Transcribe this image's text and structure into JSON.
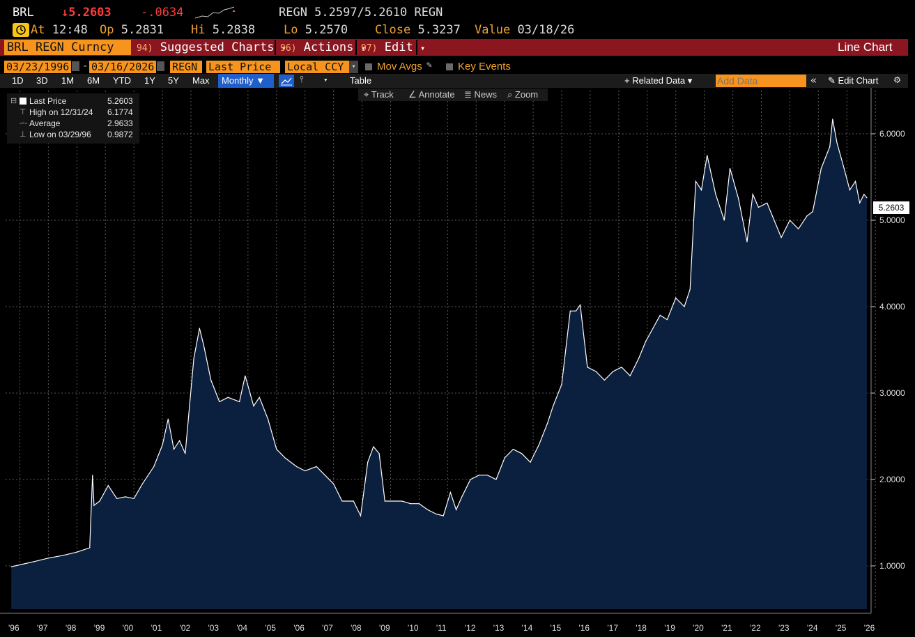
{
  "header": {
    "ticker": "BRL",
    "last_price": "↓5.2603",
    "change": "-.0634",
    "quote": "REGN 5.2597/5.2610 REGN",
    "at_label": "At",
    "at_value": "12:48",
    "op_label": "Op",
    "op_value": "5.2831",
    "hi_label": "Hi",
    "hi_value": "5.2838",
    "lo_label": "Lo",
    "lo_value": "5.2570",
    "close_label": "Close",
    "close_value": "5.3237",
    "value_label": "Value",
    "value_value": "03/18/26"
  },
  "menubar": {
    "security": "BRL REGN Curncy",
    "suggested_num": "94)",
    "suggested": "Suggested Charts",
    "actions_num": "96)",
    "actions": "Actions",
    "edit_num": "97)",
    "edit": "Edit",
    "chart_type": "Line Chart",
    "dropdown_glyph": "▾"
  },
  "params": {
    "start_date": "03/23/1996",
    "end_date": "03/16/2026",
    "dash": "-",
    "source": "REGN",
    "field": "Last Price",
    "currency": "Local CCY",
    "mov_avgs": "Mov Avgs",
    "key_events": "Key Events"
  },
  "periods": {
    "items": [
      "1D",
      "3D",
      "1M",
      "6M",
      "YTD",
      "1Y",
      "5Y",
      "Max"
    ],
    "frequency": "Monthly ▼",
    "table": "Table",
    "related": "+ Related Data ▾",
    "add_data_placeholder": "Add Data",
    "edit_chart": "Edit Chart"
  },
  "tools": {
    "track": "Track",
    "annotate": "Annotate",
    "news": "News",
    "zoom": "Zoom"
  },
  "legend": {
    "last_label": "Last Price",
    "last_value": "5.2603",
    "high_label": "High on 12/31/24",
    "high_value": "6.1774",
    "avg_label": "Average",
    "avg_value": "2.9633",
    "low_label": "Low on 03/29/96",
    "low_value": "0.9872"
  },
  "colors": {
    "area_fill": "#0b1f3f",
    "line": "#ffffff",
    "accent_orange": "#f7941d",
    "menubar_red": "#8b1620"
  },
  "chart_data": {
    "type": "area",
    "ylim": [
      0.5,
      6.5
    ],
    "y_ticks": [
      "1.0000",
      "2.0000",
      "3.0000",
      "4.0000",
      "5.0000",
      "6.0000"
    ],
    "y_tick_values": [
      1,
      2,
      3,
      4,
      5,
      6
    ],
    "x_ticks": [
      "'96",
      "'97",
      "'98",
      "'99",
      "'00",
      "'01",
      "'02",
      "'03",
      "'04",
      "'05",
      "'06",
      "'07",
      "'08",
      "'09",
      "'10",
      "'11",
      "'12",
      "'13",
      "'14",
      "'15",
      "'16",
      "'17",
      "'18",
      "'19",
      "'20",
      "'21",
      "'22",
      "'23",
      "'24",
      "'25",
      "'26"
    ],
    "last_value_label": "5.2603",
    "series": [
      {
        "x": [
          1996.2,
          1996.6,
          1997.0,
          1997.5,
          1998.0,
          1998.5,
          1998.95,
          1999.05,
          1999.1,
          1999.3,
          1999.6,
          1999.9,
          2000.2,
          2000.5,
          2000.8,
          2001.2,
          2001.5,
          2001.7,
          2001.9,
          2002.1,
          2002.3,
          2002.6,
          2002.8,
          2002.95,
          2003.2,
          2003.5,
          2003.8,
          2004.2,
          2004.4,
          2004.7,
          2004.9,
          2005.2,
          2005.5,
          2005.8,
          2006.2,
          2006.5,
          2006.9,
          2007.2,
          2007.5,
          2007.8,
          2008.2,
          2008.45,
          2008.7,
          2008.9,
          2009.1,
          2009.3,
          2009.6,
          2009.9,
          2010.2,
          2010.5,
          2010.8,
          2011.1,
          2011.35,
          2011.6,
          2011.8,
          2012.0,
          2012.3,
          2012.6,
          2012.9,
          2013.2,
          2013.5,
          2013.8,
          2014.1,
          2014.4,
          2014.7,
          2015.0,
          2015.2,
          2015.5,
          2015.8,
          2016.0,
          2016.15,
          2016.4,
          2016.7,
          2017.0,
          2017.3,
          2017.6,
          2017.9,
          2018.2,
          2018.45,
          2018.7,
          2018.95,
          2019.2,
          2019.5,
          2019.8,
          2020.0,
          2020.2,
          2020.4,
          2020.6,
          2020.9,
          2021.2,
          2021.4,
          2021.7,
          2022.0,
          2022.2,
          2022.4,
          2022.7,
          2022.95,
          2023.2,
          2023.5,
          2023.8,
          2024.1,
          2024.3,
          2024.6,
          2024.9,
          2025.0,
          2025.15,
          2025.4,
          2025.6,
          2025.8,
          2025.95,
          2026.1,
          2026.2
        ],
        "y": [
          0.99,
          1.02,
          1.05,
          1.09,
          1.12,
          1.16,
          1.21,
          2.05,
          1.7,
          1.75,
          1.93,
          1.78,
          1.8,
          1.78,
          1.95,
          2.15,
          2.4,
          2.7,
          2.35,
          2.45,
          2.3,
          3.4,
          3.75,
          3.55,
          3.15,
          2.9,
          2.95,
          2.9,
          3.2,
          2.85,
          2.95,
          2.7,
          2.35,
          2.25,
          2.15,
          2.1,
          2.15,
          2.05,
          1.95,
          1.75,
          1.75,
          1.58,
          2.2,
          2.38,
          2.3,
          1.75,
          1.75,
          1.75,
          1.72,
          1.72,
          1.65,
          1.6,
          1.58,
          1.85,
          1.65,
          1.8,
          2.0,
          2.05,
          2.05,
          2.0,
          2.25,
          2.35,
          2.3,
          2.2,
          2.4,
          2.65,
          2.85,
          3.1,
          3.95,
          3.95,
          4.02,
          3.3,
          3.25,
          3.15,
          3.25,
          3.3,
          3.2,
          3.4,
          3.6,
          3.75,
          3.9,
          3.85,
          4.1,
          4.0,
          4.2,
          5.45,
          5.35,
          5.75,
          5.3,
          5.0,
          5.6,
          5.25,
          4.75,
          5.3,
          5.15,
          5.2,
          5.0,
          4.8,
          5.0,
          4.9,
          5.05,
          5.1,
          5.6,
          5.85,
          6.17,
          5.9,
          5.6,
          5.35,
          5.45,
          5.2,
          5.3,
          5.26
        ]
      }
    ]
  }
}
